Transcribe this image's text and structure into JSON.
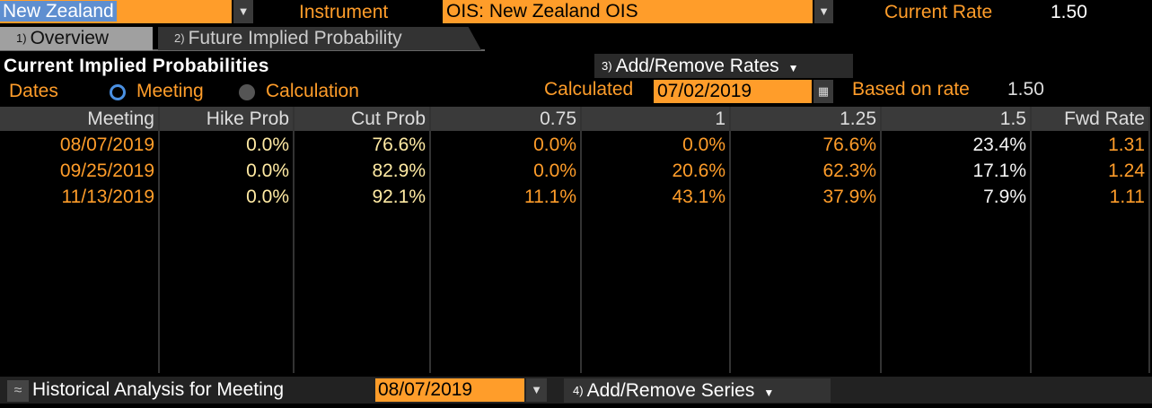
{
  "header": {
    "country": "New Zealand",
    "instrument_label": "Instrument",
    "instrument": "OIS: New Zealand OIS",
    "current_rate_label": "Current Rate",
    "current_rate": "1.50"
  },
  "tabs": [
    {
      "number": "1)",
      "label": "Overview"
    },
    {
      "number": "2)",
      "label": "Future Implied Probability"
    }
  ],
  "section": {
    "title": "Current Implied Probabilities",
    "add_remove": {
      "number": "3)",
      "label": "Add/Remove Rates"
    },
    "dates_label": "Dates",
    "options": [
      "Meeting",
      "Calculation"
    ],
    "calculated_label": "Calculated",
    "calculated": "07/02/2019",
    "based_label": "Based on rate",
    "based": "1.50"
  },
  "table": {
    "columns": [
      "Meeting",
      "Hike Prob",
      "Cut Prob",
      "0.75",
      "1",
      "1.25",
      "1.5",
      "Fwd Rate"
    ],
    "rows": [
      [
        "08/07/2019",
        "0.0%",
        "76.6%",
        "0.0%",
        "0.0%",
        "76.6%",
        "23.4%",
        "1.31"
      ],
      [
        "09/25/2019",
        "0.0%",
        "82.9%",
        "0.0%",
        "20.6%",
        "62.3%",
        "17.1%",
        "1.24"
      ],
      [
        "11/13/2019",
        "0.0%",
        "92.1%",
        "11.1%",
        "43.1%",
        "37.9%",
        "7.9%",
        "1.11"
      ]
    ]
  },
  "footer": {
    "title": "Historical Analysis for Meeting",
    "meeting": "08/07/2019",
    "add_remove": {
      "number": "4)",
      "label": "Add/Remove Series"
    }
  }
}
